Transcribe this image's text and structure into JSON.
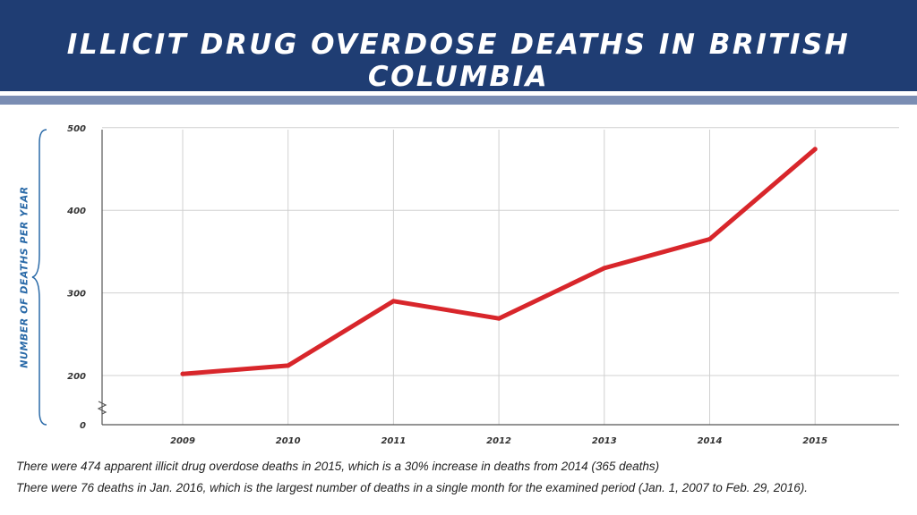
{
  "header": {
    "title": "ILLICIT DRUG OVERDOSE DEATHS IN BRITISH COLUMBIA"
  },
  "notes": [
    "There were 474 apparent illicit drug overdose deaths in 2015, which is a 30% increase in deaths from 2014 (365 deaths)",
    "There were 76 deaths in Jan. 2016, which is the largest number of deaths in a single month for the examined period (Jan. 1, 2007 to Feb. 29, 2016)."
  ],
  "colors": {
    "header_bg": "#1f3d73",
    "header_rule": "#7a8db3",
    "line": "#d8262b",
    "ylabel": "#2a6aa8",
    "grid": "#d0d0d0"
  },
  "chart_data": {
    "type": "line",
    "title": "ILLICIT DRUG OVERDOSE DEATHS IN BRITISH COLUMBIA",
    "xlabel": "",
    "ylabel": "NUMBER OF DEATHS PER YEAR",
    "categories": [
      "2009",
      "2010",
      "2011",
      "2012",
      "2013",
      "2014",
      "2015"
    ],
    "series": [
      {
        "values": [
          202,
          212,
          290,
          269,
          330,
          365,
          474
        ]
      }
    ],
    "y_ticks": [
      "0",
      "200",
      "300",
      "400",
      "500"
    ],
    "y_axis_break": true,
    "ylim": [
      150,
      500
    ],
    "grid": true,
    "legend": "none"
  }
}
